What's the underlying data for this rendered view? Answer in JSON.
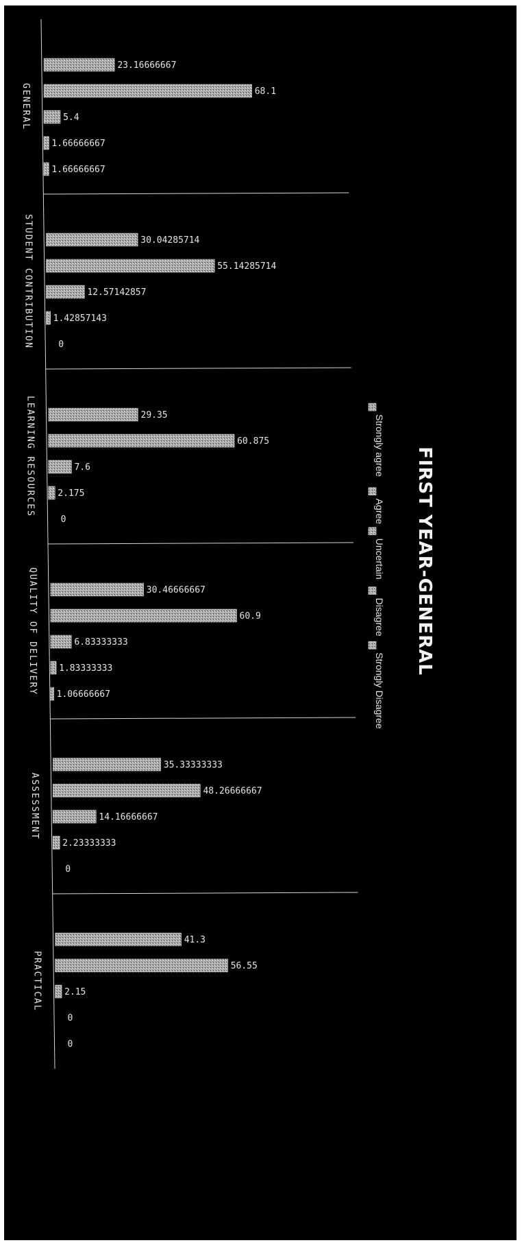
{
  "chart_data": {
    "type": "bar",
    "orientation": "horizontal",
    "title": "FIRST YEAR-GENERAL",
    "xlabel": "",
    "ylabel": "",
    "xlim": [
      0,
      100
    ],
    "grid": false,
    "legend_position": "right",
    "categories": [
      "GENERAL",
      "STUDENT CONTRIBUTION",
      "LEARNING RESOURCES",
      "QUALITY OF DELIVERY",
      "ASSESSMENT",
      "PRACTICAL"
    ],
    "series": [
      {
        "name": "Strongly agree",
        "color": "#a8a8a8",
        "values": [
          23.16666667,
          30.04285714,
          29.35,
          30.46666667,
          35.33333333,
          41.3
        ],
        "labels": [
          "23.16666667",
          "30.04285714",
          "29.35",
          "30.46666667",
          "35.33333333",
          "41.3"
        ]
      },
      {
        "name": "Agree",
        "color": "#c4c4c4",
        "values": [
          68.1,
          55.14285714,
          60.875,
          60.9,
          48.26666667,
          56.55
        ],
        "labels": [
          "68.1",
          "55.14285714",
          "60.875",
          "60.9",
          "48.26666667",
          "56.55"
        ]
      },
      {
        "name": "Uncertain",
        "color": "#d0d0d0",
        "values": [
          5.4,
          12.57142857,
          7.6,
          6.83333333,
          14.16666667,
          2.15
        ],
        "labels": [
          "5.4",
          "12.57142857",
          "7.6",
          "6.83333333",
          "14.16666667",
          "2.15"
        ]
      },
      {
        "name": "Disagree",
        "color": "#e0e0e0",
        "values": [
          1.66666667,
          1.42857143,
          2.175,
          1.83333333,
          2.23333333,
          0
        ],
        "labels": [
          "1.66666667",
          "1.42857143",
          "2.175",
          "1.83333333",
          "2.23333333",
          "0"
        ]
      },
      {
        "name": "Strongly Disagree",
        "color": "#bbbbbb",
        "values": [
          1.66666667,
          0,
          0,
          1.06666667,
          0,
          0
        ],
        "labels": [
          "1.66666667",
          "0",
          "0",
          "1.06666667",
          "0",
          "0"
        ]
      }
    ]
  }
}
